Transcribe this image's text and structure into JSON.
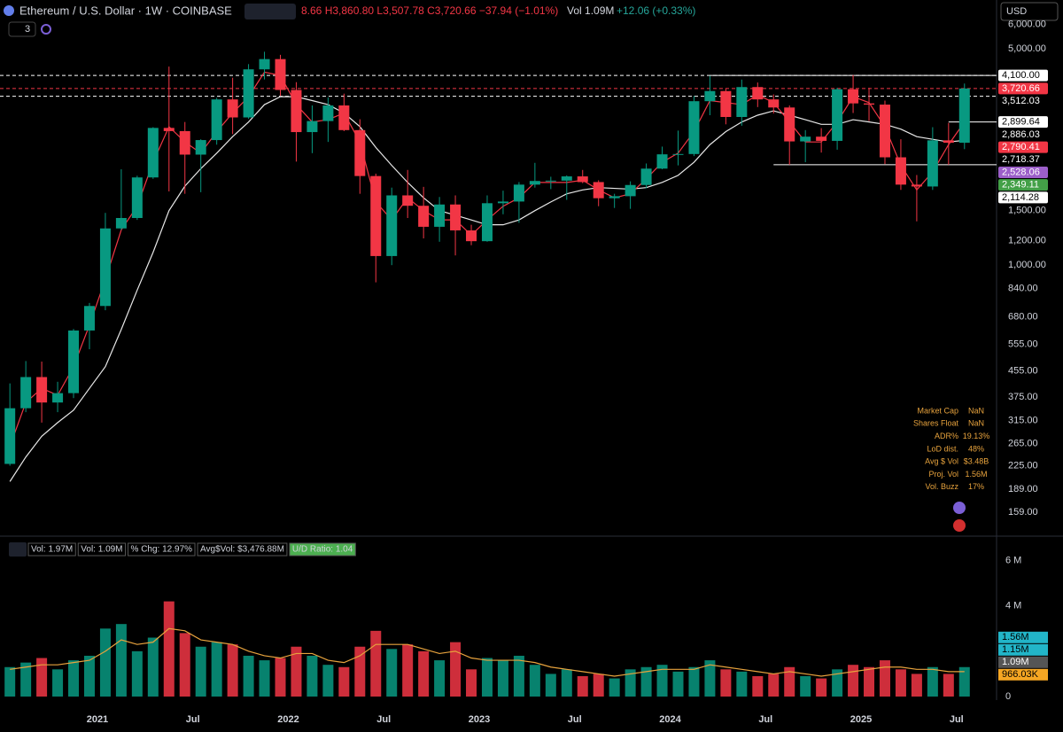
{
  "chart_data": {
    "type": "candlestick",
    "title": "Ethereum / U.S. Dollar · 1W · COINBASE",
    "ohlc_text": "8.66 H3,860.80 L3,507.78 C3,720.66 −37.94 (−1.01%)",
    "vol_text": "Vol 1.09M",
    "vol_change_text": "+12.06 (+0.33%)",
    "currency": "USD",
    "indicator_count": "3",
    "log_scale": true,
    "grid": false,
    "up_color": "#089981",
    "down_color": "#f23645",
    "x": [
      "2020-07",
      "2020-08",
      "2020-09",
      "2020-10",
      "2020-11",
      "2020-12",
      "2021-01",
      "2021-02",
      "2021-03",
      "2021-04",
      "2021-05",
      "2021-06",
      "2021-07",
      "2021-08",
      "2021-09",
      "2021-10",
      "2021-11",
      "2021-12",
      "2022-01",
      "2022-02",
      "2022-03",
      "2022-04",
      "2022-05",
      "2022-06",
      "2022-07",
      "2022-08",
      "2022-09",
      "2022-10",
      "2022-11",
      "2022-12",
      "2023-01",
      "2023-02",
      "2023-03",
      "2023-04",
      "2023-05",
      "2023-06",
      "2023-07",
      "2023-08",
      "2023-09",
      "2023-10",
      "2023-11",
      "2023-12",
      "2024-01",
      "2024-02",
      "2024-03",
      "2024-04",
      "2024-05",
      "2024-06",
      "2024-07",
      "2024-08",
      "2024-09",
      "2024-10",
      "2024-11",
      "2024-12",
      "2025-01",
      "2025-02",
      "2025-03",
      "2025-04",
      "2025-05",
      "2025-06",
      "2025-07"
    ],
    "open": [
      228,
      345,
      435,
      360,
      386,
      615,
      738,
      1314,
      1420,
      1920,
      2775,
      2710,
      2275,
      2535,
      3430,
      3000,
      4290,
      4630,
      3680,
      2690,
      2920,
      3280,
      2730,
      1940,
      1070,
      1680,
      1555,
      1330,
      1570,
      1295,
      1195,
      1585,
      1605,
      1820,
      1870,
      1875,
      1935,
      1855,
      1645,
      1670,
      1815,
      2050,
      2280,
      2285,
      3385,
      3650,
      3010,
      3760,
      3430,
      3230,
      2510,
      2600,
      2520,
      3700,
      3330,
      3300,
      2230,
      1820,
      1795,
      2530,
      2485
    ],
    "high": [
      415,
      490,
      488,
      420,
      622,
      755,
      1475,
      2040,
      1945,
      2790,
      4380,
      2900,
      2550,
      3470,
      4030,
      4460,
      4890,
      4780,
      3900,
      3280,
      3480,
      3580,
      2960,
      1975,
      1780,
      2030,
      1790,
      1660,
      1680,
      1350,
      1680,
      1740,
      1855,
      2140,
      1930,
      1950,
      2030,
      1880,
      1700,
      1865,
      2130,
      2415,
      2720,
      3520,
      4090,
      3730,
      3975,
      3890,
      3560,
      3280,
      2730,
      2770,
      3740,
      4110,
      3740,
      3400,
      2550,
      1955,
      2790,
      2880,
      3860
    ],
    "low": [
      225,
      335,
      310,
      335,
      372,
      535,
      715,
      1300,
      1400,
      1900,
      1730,
      1700,
      1720,
      2450,
      2650,
      2970,
      3980,
      3520,
      2160,
      2300,
      2500,
      2710,
      1700,
      880,
      1000,
      1420,
      1220,
      1190,
      1075,
      1160,
      1190,
      1460,
      1370,
      1780,
      1760,
      1625,
      1840,
      1550,
      1530,
      1520,
      1770,
      2040,
      2100,
      2250,
      3050,
      2850,
      2820,
      3240,
      3090,
      2110,
      2150,
      2310,
      2360,
      3100,
      2920,
      2120,
      1750,
      1385,
      1750,
      2110,
      2370
    ],
    "close": [
      345,
      435,
      360,
      386,
      615,
      738,
      1314,
      1420,
      1920,
      2775,
      2710,
      2275,
      2535,
      3430,
      3000,
      4290,
      4630,
      3680,
      2690,
      2920,
      3280,
      2730,
      1940,
      1070,
      1680,
      1555,
      1330,
      1570,
      1295,
      1195,
      1585,
      1605,
      1820,
      1870,
      1875,
      1935,
      1855,
      1645,
      1670,
      1815,
      2050,
      2280,
      2285,
      3385,
      3650,
      3010,
      3760,
      3430,
      3230,
      2510,
      2600,
      2520,
      3700,
      3330,
      3300,
      2230,
      1820,
      1795,
      2530,
      2485,
      3720.66
    ],
    "moving_averages": [
      {
        "color": "#e8e8e8",
        "values": [
          200,
          240,
          280,
          310,
          340,
          400,
          470,
          620,
          830,
          1100,
          1500,
          1800,
          2050,
          2300,
          2600,
          2900,
          3300,
          3500,
          3500,
          3400,
          3300,
          3100,
          2800,
          2400,
          2100,
          1850,
          1650,
          1500,
          1450,
          1400,
          1350,
          1350,
          1400,
          1500,
          1600,
          1700,
          1750,
          1780,
          1770,
          1760,
          1780,
          1850,
          1950,
          2150,
          2450,
          2700,
          2900,
          3050,
          3150,
          3050,
          2950,
          2850,
          2850,
          2950,
          2900,
          2850,
          2750,
          2600,
          2550,
          2500,
          2530
        ]
      },
      {
        "color": "#f23645",
        "values": [
          260,
          360,
          400,
          380,
          470,
          640,
          900,
          1300,
          1550,
          2150,
          2800,
          2500,
          2300,
          2700,
          3100,
          3500,
          4200,
          4100,
          3300,
          2900,
          2950,
          3100,
          2500,
          1600,
          1400,
          1650,
          1500,
          1400,
          1400,
          1250,
          1400,
          1550,
          1650,
          1850,
          1850,
          1850,
          1880,
          1750,
          1650,
          1700,
          1900,
          2150,
          2300,
          2700,
          3400,
          3350,
          3300,
          3550,
          3350,
          2900,
          2500,
          2500,
          2900,
          3500,
          3350,
          2800,
          2100,
          1750,
          2000,
          2450,
          2900
        ]
      }
    ],
    "ylim": [
      135,
      7185
    ],
    "yticks": [
      {
        "value": 6000,
        "label": "6,000.00"
      },
      {
        "value": 5000,
        "label": "5,000.00"
      },
      {
        "value": 1500,
        "label": "1,500.00"
      },
      {
        "value": 1200,
        "label": "1,200.00"
      },
      {
        "value": 1000,
        "label": "1,000.00"
      },
      {
        "value": 840,
        "label": "840.00"
      },
      {
        "value": 680,
        "label": "680.00"
      },
      {
        "value": 555,
        "label": "555.00"
      },
      {
        "value": 455,
        "label": "455.00"
      },
      {
        "value": 375,
        "label": "375.00"
      },
      {
        "value": 315,
        "label": "315.00"
      },
      {
        "value": 265,
        "label": "265.00"
      },
      {
        "value": 225,
        "label": "225.00"
      },
      {
        "value": 189,
        "label": "189.00"
      },
      {
        "value": 159,
        "label": "159.00"
      }
    ],
    "xticks": [
      {
        "value": "2021-01",
        "label": "2021"
      },
      {
        "value": "2021-07",
        "label": "Jul"
      },
      {
        "value": "2022-01",
        "label": "2022"
      },
      {
        "value": "2022-07",
        "label": "Jul"
      },
      {
        "value": "2023-01",
        "label": "2023"
      },
      {
        "value": "2023-07",
        "label": "Jul"
      },
      {
        "value": "2024-01",
        "label": "2024"
      },
      {
        "value": "2024-07",
        "label": "Jul"
      },
      {
        "value": "2025-01",
        "label": "2025"
      },
      {
        "value": "2025-07",
        "label": "Jul"
      }
    ],
    "levels": [
      {
        "value": 4100,
        "color": "#ffffff",
        "dashed": true
      },
      {
        "value": 3720.66,
        "color": "#f23645",
        "dashed": true
      },
      {
        "value": 3512.03,
        "color": "#ffffff",
        "dashed": true
      },
      {
        "value": 4100,
        "color": "#ffffff",
        "from": "2024-03"
      },
      {
        "value": 2899.64,
        "color": "#ffffff",
        "from": "2025-06"
      },
      {
        "value": 2110,
        "color": "#ffffff",
        "from": "2024-07"
      }
    ],
    "price_labels": [
      {
        "value": 4100,
        "label": "4,100.00",
        "bg": "#ffffff",
        "fg": "#000000"
      },
      {
        "value": 3720.66,
        "label": "3,720.66",
        "bg": "#f23645",
        "fg": "#ffffff"
      },
      {
        "value": 3512.03,
        "label": "3,512.03",
        "bg": "#000000",
        "fg": "#ffffff"
      },
      {
        "value": 2899.64,
        "label": "2,899.64",
        "bg": "#ffffff",
        "fg": "#000000"
      },
      {
        "value": 2886.03,
        "label": "2,886.03",
        "bg": "#000000",
        "fg": "#ffffff"
      },
      {
        "value": 2790.41,
        "label": "2,790.41",
        "bg": "#f23645",
        "fg": "#ffffff"
      },
      {
        "value": 2718.37,
        "label": "2,718.37",
        "bg": "#000000",
        "fg": "#ffffff"
      },
      {
        "value": 2528.06,
        "label": "2,528.06",
        "bg": "#9c5fc9",
        "fg": "#ffffff"
      },
      {
        "value": 2349.11,
        "label": "2,349.11",
        "bg": "#43a047",
        "fg": "#ffffff"
      },
      {
        "value": 2114.28,
        "label": "2,114.28",
        "bg": "#ffffff",
        "fg": "#000000"
      }
    ],
    "stats": [
      [
        "Market Cap",
        "NaN"
      ],
      [
        "Shares Float",
        "NaN"
      ],
      [
        "ADR%",
        "19.13%"
      ],
      [
        "LoD dist.",
        "48%"
      ],
      [
        "Avg $ Vol",
        "$3.48B"
      ],
      [
        "Proj. Vol",
        "1.56M"
      ],
      [
        "Vol. Buzz",
        "17%"
      ]
    ],
    "volume": {
      "values": [
        1.3,
        1.5,
        1.7,
        1.2,
        1.6,
        1.8,
        3.0,
        3.2,
        2.0,
        2.6,
        4.2,
        2.8,
        2.2,
        2.4,
        2.3,
        1.8,
        1.6,
        1.7,
        2.2,
        1.8,
        1.4,
        1.3,
        2.2,
        2.9,
        2.1,
        2.3,
        2.0,
        1.6,
        2.4,
        1.2,
        1.7,
        1.6,
        1.8,
        1.4,
        1.0,
        1.2,
        0.9,
        1.0,
        0.8,
        1.2,
        1.3,
        1.4,
        1.1,
        1.3,
        1.6,
        1.2,
        1.1,
        0.9,
        1.0,
        1.3,
        0.9,
        0.8,
        1.2,
        1.4,
        1.3,
        1.6,
        1.2,
        1.0,
        1.3,
        1.0,
        1.3
      ],
      "average": {
        "color": "#e8a33d",
        "values": [
          1.2,
          1.3,
          1.4,
          1.4,
          1.5,
          1.6,
          2.0,
          2.5,
          2.3,
          2.4,
          3.0,
          2.9,
          2.5,
          2.4,
          2.3,
          2.0,
          1.8,
          1.7,
          1.9,
          1.9,
          1.6,
          1.5,
          1.8,
          2.3,
          2.3,
          2.3,
          2.1,
          1.9,
          2.0,
          1.7,
          1.6,
          1.6,
          1.6,
          1.5,
          1.3,
          1.2,
          1.1,
          1.0,
          0.9,
          1.0,
          1.1,
          1.2,
          1.2,
          1.2,
          1.4,
          1.3,
          1.2,
          1.1,
          1.0,
          1.1,
          1.0,
          0.9,
          1.0,
          1.1,
          1.2,
          1.3,
          1.3,
          1.2,
          1.2,
          1.1,
          1.1
        ]
      },
      "ylim": [
        0,
        7
      ],
      "yticks": [
        {
          "value": 6,
          "label": "6 M"
        },
        {
          "value": 4,
          "label": "4 M"
        },
        0
      ],
      "legend": [
        "Vol: 1.97M",
        "Vol: 1.09M",
        "% Chg: 12.97%",
        "Avg$Vol: $3,476.88M",
        "U/D Ratio: 1.04"
      ],
      "labels": [
        {
          "value": 1.56,
          "label": "1.56M",
          "bg": "#22b5c8",
          "fg": "#000000"
        },
        {
          "value": 1.15,
          "label": "1.15M",
          "bg": "#22b5c8",
          "fg": "#000000"
        },
        {
          "value": 1.09,
          "label": "1.09M",
          "bg": "#555555",
          "fg": "#ffffff"
        },
        {
          "value": 0.96603,
          "label": "966.03K",
          "bg": "#f5a623",
          "fg": "#000000"
        }
      ]
    }
  }
}
